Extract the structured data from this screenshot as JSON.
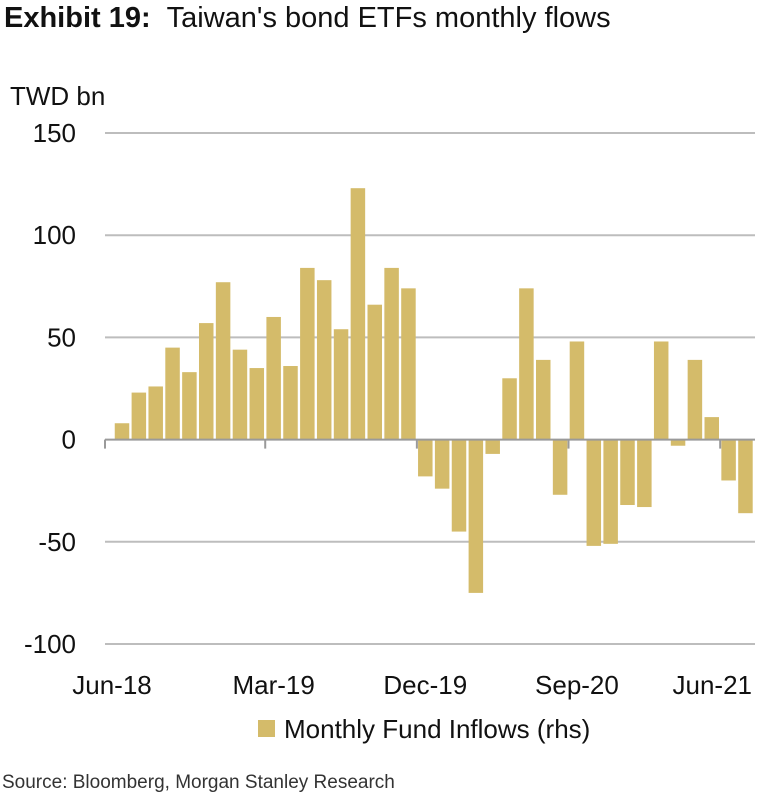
{
  "title": {
    "exhibit": "Exhibit 19:",
    "text": "Taiwan's bond ETFs monthly flows"
  },
  "source": "Source: Bloomberg, Morgan Stanley Research",
  "colors": {
    "bar": "#d4bb6a",
    "grid": "#bdbdbd",
    "axis": "#9a9a9a",
    "text": "#111111"
  },
  "chart_data": {
    "type": "bar",
    "ylabel": "TWD bn",
    "ylim": [
      -100,
      150
    ],
    "yticks": [
      150,
      100,
      50,
      0,
      -50,
      -100
    ],
    "grid": true,
    "legend_position": "bottom",
    "x_tick_labels": [
      {
        "index": 0,
        "label": "Jun-18"
      },
      {
        "index": 9,
        "label": "Mar-19"
      },
      {
        "index": 18,
        "label": "Dec-19"
      },
      {
        "index": 27,
        "label": "Sep-20"
      },
      {
        "index": 36,
        "label": "Jun-21"
      }
    ],
    "categories": [
      "Jun-18",
      "Jul-18",
      "Aug-18",
      "Sep-18",
      "Oct-18",
      "Nov-18",
      "Dec-18",
      "Jan-19",
      "Feb-19",
      "Mar-19",
      "Apr-19",
      "May-19",
      "Jun-19",
      "Jul-19",
      "Aug-19",
      "Sep-19",
      "Oct-19",
      "Nov-19",
      "Dec-19",
      "Jan-20",
      "Feb-20",
      "Mar-20",
      "Apr-20",
      "May-20",
      "Jun-20",
      "Jul-20",
      "Aug-20",
      "Sep-20",
      "Oct-20",
      "Nov-20",
      "Dec-20",
      "Jan-21",
      "Feb-21",
      "Mar-21",
      "Apr-21",
      "May-21",
      "Jun-21",
      "Jul-21"
    ],
    "series": [
      {
        "name": "Monthly Fund Inflows (rhs)",
        "values": [
          8,
          23,
          26,
          45,
          33,
          57,
          77,
          44,
          35,
          60,
          36,
          84,
          78,
          54,
          123,
          66,
          84,
          74,
          -18,
          -24,
          -45,
          -75,
          -7,
          30,
          74,
          39,
          -27,
          48,
          -52,
          -51,
          -32,
          -33,
          48,
          -3,
          39,
          11,
          -20,
          -36
        ]
      }
    ]
  }
}
